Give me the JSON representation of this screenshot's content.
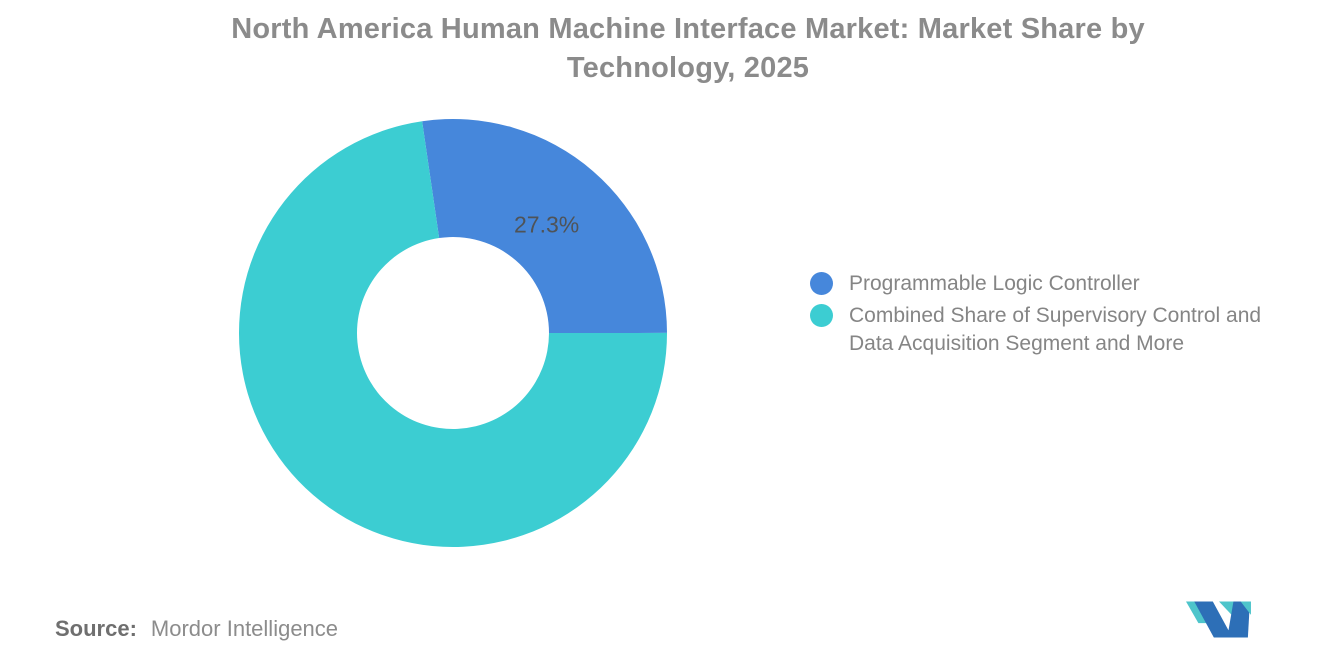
{
  "page": {
    "background_color": "#ffffff"
  },
  "header": {
    "title_line1": "North America Human Machine Interface Market: Market Share by",
    "title_line2": "Technology, 2025",
    "title_color": "#8b8b8b"
  },
  "chart_data": {
    "type": "pie",
    "subtype": "donut",
    "title": "North America Human Machine Interface Market: Market Share by Technology, 2025",
    "series": [
      {
        "name": "Programmable Logic Controller",
        "value": 27.3,
        "color": "#4687DB",
        "data_label": "27.3%"
      },
      {
        "name": "Combined Share of Supervisory Control and Data Acquisition Segment and More",
        "value": 72.7,
        "color": "#3CCDD2",
        "data_label": ""
      }
    ],
    "start_angle_deg": -8.3,
    "inner_radius_ratio": 0.45,
    "data_label_color": "#4f5357",
    "legend_position": "right",
    "background": "#ffffff"
  },
  "source": {
    "prefix": "Source:",
    "value": "Mordor Intelligence"
  },
  "logo": {
    "teal_color": "#4EC5CB",
    "blue_color": "#2D6FB7"
  }
}
